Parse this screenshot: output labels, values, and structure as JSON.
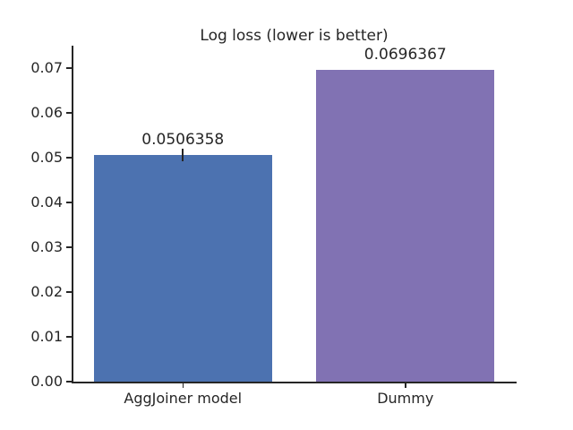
{
  "chart_data": {
    "type": "bar",
    "title": "Log loss (lower is better)",
    "categories": [
      "AggJoiner model",
      "Dummy"
    ],
    "values": [
      0.0506358,
      0.0696367
    ],
    "bar_labels": [
      "0.0506358",
      "0.0696367"
    ],
    "bar_colors": [
      "#4c72b0",
      "#8172b3"
    ],
    "error_bar_half_visible": [
      0.0014,
      0
    ],
    "ytick_labels": [
      "0.00",
      "0.01",
      "0.02",
      "0.03",
      "0.04",
      "0.05",
      "0.06",
      "0.07"
    ],
    "ylim": [
      0,
      0.075
    ],
    "xlabel": "",
    "ylabel": "",
    "grid": false,
    "legend": null,
    "axis_color": "#262626",
    "text_color": "#262626",
    "background_color": "#ffffff"
  }
}
